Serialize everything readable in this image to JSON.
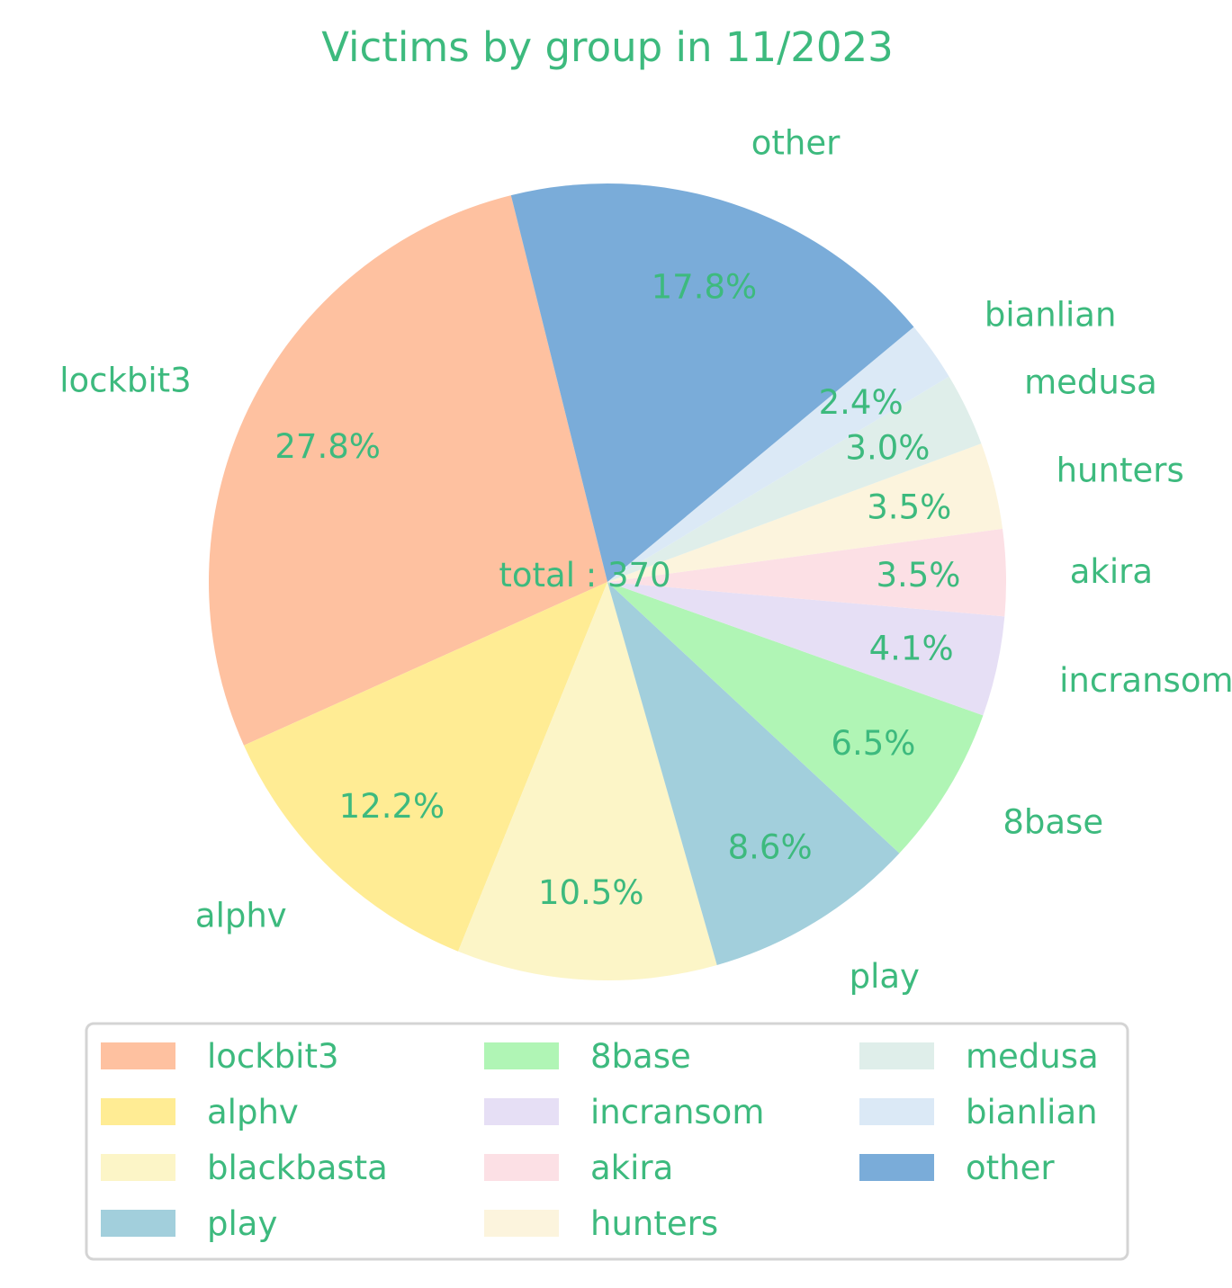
{
  "chart_data": {
    "type": "pie",
    "title": "Victims by group in 11/2023",
    "center_label": "total : 370",
    "text_color": "#3dba7e",
    "slices": [
      {
        "label": "lockbit3",
        "value": 103,
        "pct_label": "27.8%",
        "color": "#fec1a0"
      },
      {
        "label": "alphv",
        "value": 45,
        "pct_label": "12.2%",
        "color": "#ffec94"
      },
      {
        "label": "blackbasta",
        "value": 39,
        "pct_label": "10.5%",
        "color": "#fcf5c7"
      },
      {
        "label": "play",
        "value": 32,
        "pct_label": "8.6%",
        "color": "#a2cfdc"
      },
      {
        "label": "8base",
        "value": 24,
        "pct_label": "6.5%",
        "color": "#b0f5b5"
      },
      {
        "label": "incransom",
        "value": 15,
        "pct_label": "4.1%",
        "color": "#e6dff5"
      },
      {
        "label": "akira",
        "value": 13,
        "pct_label": "3.5%",
        "color": "#fce0e5"
      },
      {
        "label": "hunters",
        "value": 13,
        "pct_label": "3.5%",
        "color": "#fcf4dd"
      },
      {
        "label": "medusa",
        "value": 11,
        "pct_label": "3.0%",
        "color": "#dfeeea"
      },
      {
        "label": "bianlian",
        "value": 9,
        "pct_label": "2.4%",
        "color": "#dbe9f6"
      },
      {
        "label": "other",
        "value": 66,
        "pct_label": "17.8%",
        "color": "#7aacd9"
      }
    ],
    "start_angle_deg": 104,
    "direction": "counterclockwise",
    "legend": {
      "placement": "bottom",
      "columns": 3
    }
  }
}
